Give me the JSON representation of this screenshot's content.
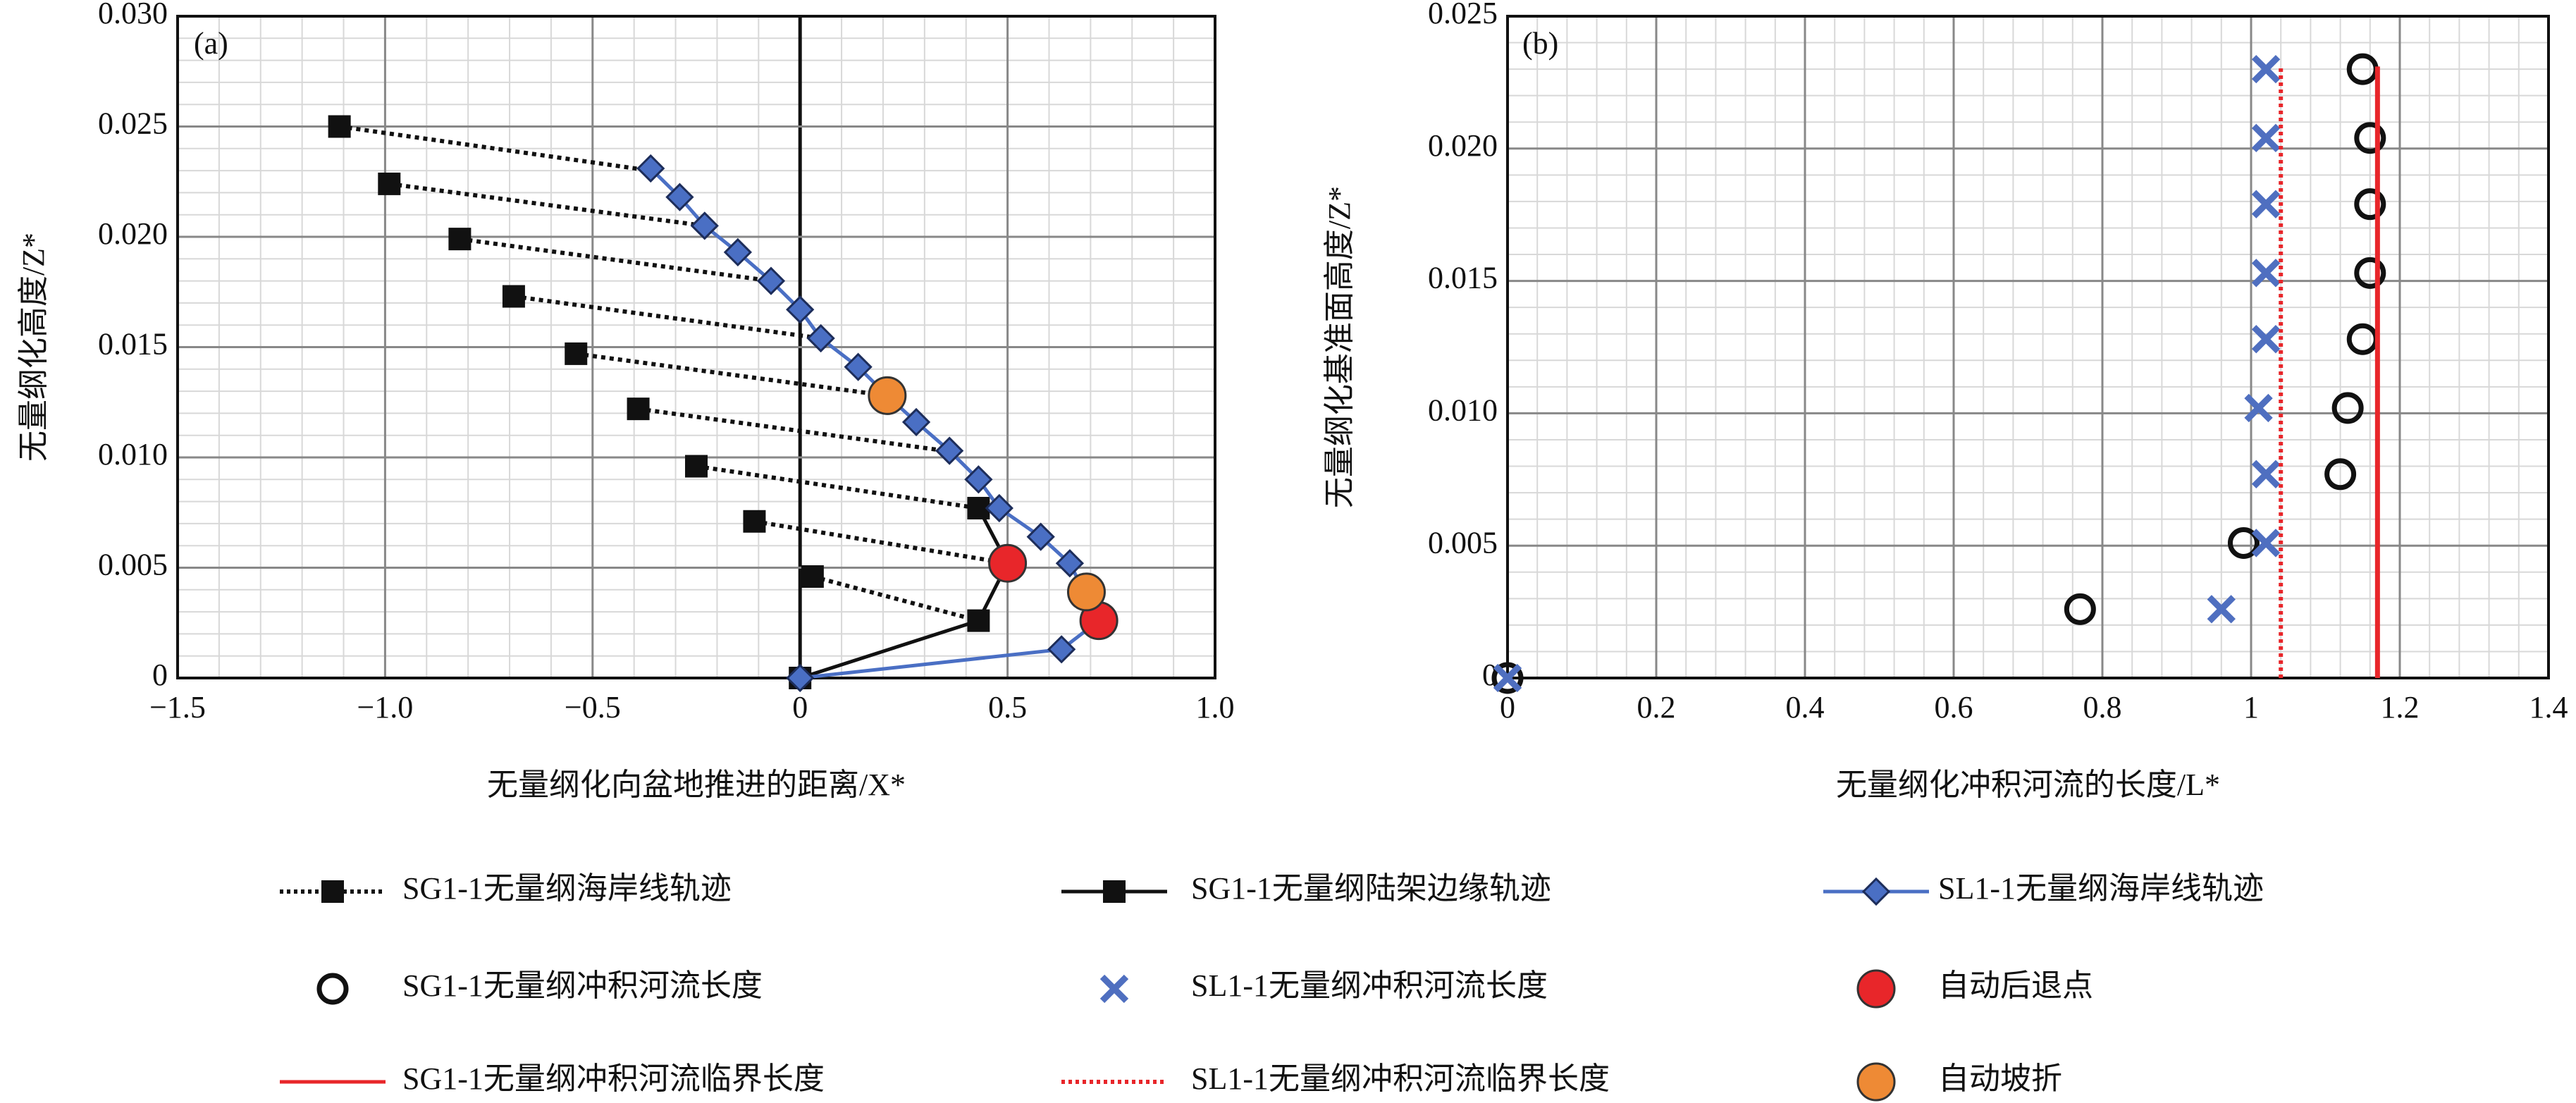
{
  "chart_data": [
    {
      "type": "line",
      "panel": "(a)",
      "xlabel": "无量纲化向盆地推进的距离/X*",
      "ylabel": "无量纲化高度/Z*",
      "xlim": [
        -1.5,
        1.0
      ],
      "ylim": [
        0,
        0.03
      ],
      "xticks": [
        {
          "value": -1.5,
          "label": "−1.5"
        },
        {
          "value": -1,
          "label": "−1.0"
        },
        {
          "value": -0.5,
          "label": "−0.5"
        },
        0,
        0.5,
        {
          "value": 1,
          "label": "1.0"
        }
      ],
      "yticks": [
        0,
        0.005,
        {
          "value": 0.01,
          "label": "0.010"
        },
        0.015,
        {
          "value": 0.02,
          "label": "0.020"
        },
        0.025,
        {
          "value": 0.03,
          "label": "0.030"
        }
      ],
      "grid": true,
      "minor_grid": true,
      "series": [
        {
          "name": "SG1-1无量纲海岸线轨迹",
          "color": "#111111",
          "line": "dotted",
          "marker": "square",
          "x": [
            -1.11,
            -0.99,
            -0.82,
            -0.69,
            -0.54,
            -0.39,
            -0.25,
            -0.11,
            0.03
          ],
          "y": [
            0.025,
            0.0224,
            0.0199,
            0.0173,
            0.0147,
            0.0122,
            0.0096,
            0.0071,
            0.0046
          ],
          "x_end": [
            -0.36,
            -0.23,
            -0.07,
            0.05,
            0.21,
            0.35,
            0.43,
            0.5,
            0.43
          ],
          "y_end": [
            0.023,
            0.0205,
            0.018,
            0.0154,
            0.0128,
            0.0103,
            0.0077,
            0.0052,
            0.0026
          ]
        },
        {
          "name": "SG1-1无量纲陆架边缘轨迹",
          "color": "#111111",
          "line": "solid",
          "marker": "square",
          "x": [
            0,
            0.43,
            0.5,
            0.43
          ],
          "y": [
            0,
            0.0026,
            0.0052,
            0.0077
          ]
        },
        {
          "name": "SL1-1无量纲海岸线轨迹",
          "color": "#4a6fc4",
          "line": "solid",
          "marker": "diamond",
          "x": [
            0,
            0.63,
            0.72,
            0.65,
            0.58,
            0.48,
            0.43,
            0.36,
            0.28,
            0.21,
            0.14,
            0.05,
            0,
            -0.07,
            -0.15,
            -0.23,
            -0.29,
            -0.36
          ],
          "y": [
            0,
            0.0013,
            0.0026,
            0.0052,
            0.0064,
            0.0077,
            0.009,
            0.0103,
            0.0116,
            0.0128,
            0.0141,
            0.0154,
            0.0167,
            0.018,
            0.0193,
            0.0205,
            0.0218,
            0.0231
          ]
        },
        {
          "name": "自动后退点",
          "color": "#e8262a",
          "line": "none",
          "marker": "dot",
          "x": [
            0.5,
            0.72
          ],
          "y": [
            0.0052,
            0.0026
          ]
        },
        {
          "name": "自动坡折",
          "color": "#ee8a35",
          "line": "none",
          "marker": "dot",
          "x": [
            0.21,
            0.69
          ],
          "y": [
            0.0128,
            0.0039
          ]
        }
      ]
    },
    {
      "type": "scatter",
      "panel": "(b)",
      "xlabel": "无量纲化冲积河流的长度/L*",
      "ylabel": "无量纲化基准面高度/Z*",
      "xlim": [
        0,
        1.4
      ],
      "ylim": [
        0,
        0.025
      ],
      "xticks": [
        0,
        0.2,
        0.4,
        0.6,
        0.8,
        1,
        1.2,
        1.4
      ],
      "yticks": [
        0,
        0.005,
        {
          "value": 0.01,
          "label": "0.010"
        },
        0.015,
        {
          "value": 0.02,
          "label": "0.020"
        },
        0.025
      ],
      "grid": true,
      "minor_grid": true,
      "series": [
        {
          "name": "SG1-1无量纲冲积河流长度",
          "color": "#111111",
          "line": "none",
          "marker": "circle",
          "x": [
            0,
            0.77,
            0.99,
            1.12,
            1.13,
            1.15,
            1.16,
            1.16,
            1.16,
            1.15
          ],
          "y": [
            0,
            0.0026,
            0.0051,
            0.0077,
            0.0102,
            0.0128,
            0.0153,
            0.0179,
            0.0204,
            0.023
          ]
        },
        {
          "name": "SL1-1无量纲冲积河流长度",
          "color": "#4f6fc0",
          "line": "none",
          "marker": "cross",
          "x": [
            0,
            0.96,
            1.02,
            1.02,
            1.01,
            1.02,
            1.02,
            1.02,
            1.02,
            1.02
          ],
          "y": [
            0,
            0.0026,
            0.0051,
            0.0077,
            0.0102,
            0.0128,
            0.0153,
            0.0179,
            0.0204,
            0.023
          ]
        },
        {
          "name": "SG1-1无量纲冲积河流临界长度",
          "color": "#e8262a",
          "line": "solid",
          "marker": "none",
          "x": [
            1.17,
            1.17
          ],
          "y": [
            0,
            0.0231
          ]
        },
        {
          "name": "SL1-1无量纲冲积河流临界长度",
          "color": "#e8262a",
          "line": "dotted",
          "marker": "none",
          "x": [
            1.04,
            1.04
          ],
          "y": [
            0,
            0.0231
          ]
        }
      ]
    }
  ]
}
